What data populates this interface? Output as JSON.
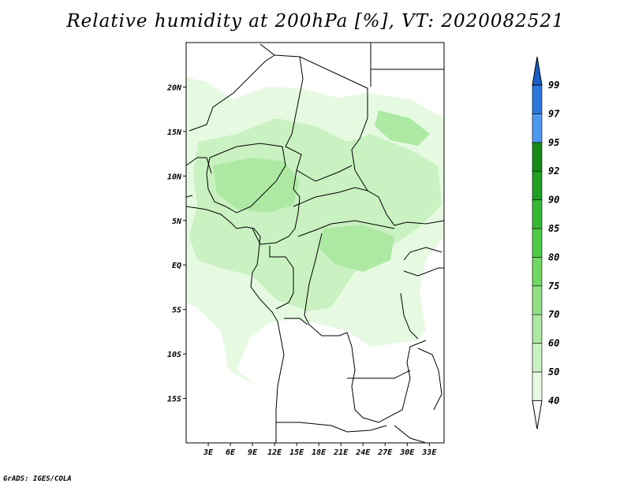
{
  "title": "Relative humidity at 200hPa [%], VT: 2020082521",
  "footer": "GrADS: IGES/COLA",
  "map": {
    "projection": "lat-lon",
    "lon_range": [
      0,
      35
    ],
    "lat_range": [
      -20,
      25
    ],
    "lat_labels": [
      "20N",
      "15N",
      "10N",
      "5N",
      "EQ",
      "5S",
      "10S",
      "15S"
    ],
    "lat_values": [
      20,
      15,
      10,
      5,
      0,
      -5,
      -10,
      -15
    ],
    "lon_labels": [
      "3E",
      "6E",
      "9E",
      "12E",
      "15E",
      "18E",
      "21E",
      "24E",
      "27E",
      "30E",
      "33E"
    ],
    "lon_values": [
      3,
      6,
      9,
      12,
      15,
      18,
      21,
      24,
      27,
      30,
      33
    ]
  },
  "colorbar": {
    "levels": [
      "40",
      "50",
      "60",
      "70",
      "75",
      "80",
      "85",
      "90",
      "92",
      "95",
      "97",
      "99"
    ],
    "colors": [
      "#ffffff",
      "#e6fae2",
      "#c9f1c1",
      "#ade9a3",
      "#90e183",
      "#6fd864",
      "#4dcd46",
      "#35b834",
      "#20a021",
      "#168a17",
      "#4d9bf0",
      "#2a78de",
      "#1a5cc8"
    ]
  },
  "field_colors": {
    "rh_40_50": "#e6fae2",
    "rh_50_60": "#c9f1c1",
    "rh_60_70": "#ade9a3"
  }
}
